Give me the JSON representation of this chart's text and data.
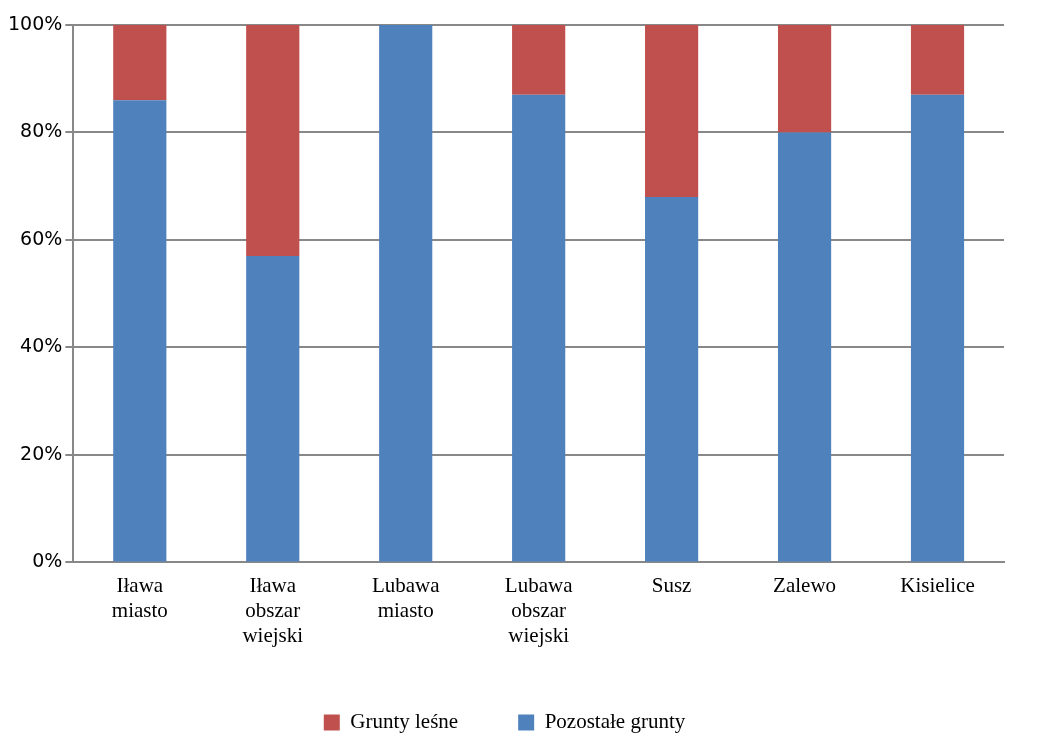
{
  "chart_data": {
    "type": "bar",
    "stacked": true,
    "categories": [
      "Iława miasto",
      "Iława obszar wiejski",
      "Lubawa miasto",
      "Lubawa obszar wiejski",
      "Susz",
      "Zalewo",
      "Kisielice"
    ],
    "series": [
      {
        "name": "Pozostałe grunty",
        "color": "#4f81bd",
        "values": [
          86,
          57,
          100,
          87,
          68,
          80,
          87
        ]
      },
      {
        "name": "Grunty leśne",
        "color": "#c0504d",
        "values": [
          14,
          43,
          0,
          13,
          32,
          20,
          13
        ]
      }
    ],
    "ylim": [
      0,
      100
    ],
    "yticks": [
      {
        "value": 0,
        "label": "0%"
      },
      {
        "value": 20,
        "label": "20%"
      },
      {
        "value": 40,
        "label": "40%"
      },
      {
        "value": 60,
        "label": "60%"
      },
      {
        "value": 80,
        "label": "80%"
      },
      {
        "value": 100,
        "label": "100%"
      }
    ],
    "grid": "y",
    "legend": "bottom"
  }
}
